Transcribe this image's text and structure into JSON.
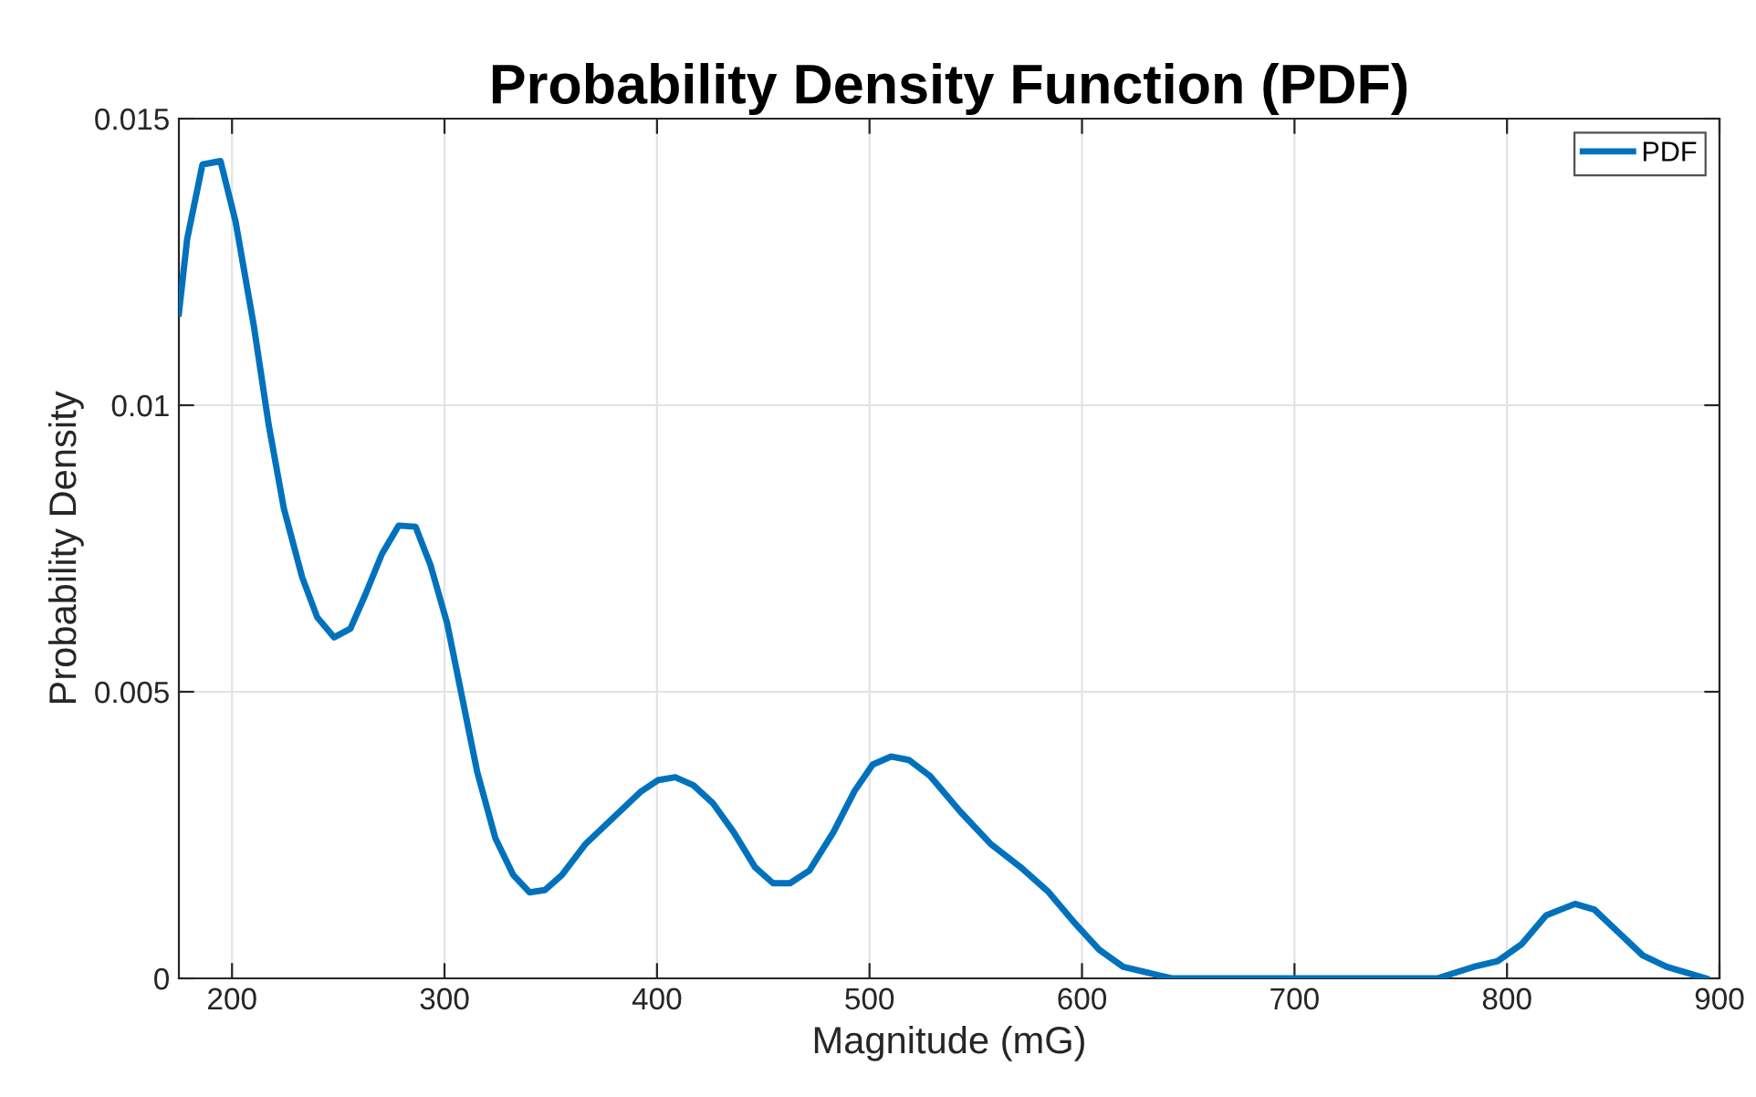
{
  "chart_data": {
    "type": "line",
    "title": "Probability Density Function (PDF)",
    "xlabel": "Magnitude (mG)",
    "ylabel": "Probability Density",
    "series": [
      {
        "name": "PDF",
        "color": "#0072bd",
        "x": [
          175,
          178.9,
          186.1,
          194.6,
          201.7,
          210.2,
          217.3,
          224.4,
          233,
          240.1,
          248,
          255.7,
          262.8,
          270.5,
          278.4,
          286.4,
          293.5,
          301.2,
          308.3,
          315.4,
          323.9,
          332.4,
          340.1,
          347.2,
          355.2,
          366.5,
          379.3,
          392.1,
          400.6,
          408.6,
          417.1,
          426.2,
          436.1,
          446.1,
          454.6,
          462.6,
          471.7,
          483,
          493,
          501.5,
          510.1,
          518.6,
          528.5,
          542.7,
          556.9,
          571.1,
          583.9,
          596.7,
          608.1,
          619.4,
          630.8,
          642.2,
          664.9,
          700,
          740,
          767.2,
          784.2,
          795.6,
          807,
          818.4,
          832,
          841.1,
          852.5,
          863.9,
          875.2,
          893.7
        ],
        "values": [
          0.0116,
          0.0129,
          0.0142,
          0.01426,
          0.0132,
          0.0114,
          0.00965,
          0.0082,
          0.007,
          0.0063,
          0.00595,
          0.0061,
          0.0067,
          0.0074,
          0.0079,
          0.00788,
          0.0072,
          0.0062,
          0.0049,
          0.0036,
          0.00245,
          0.0018,
          0.0015,
          0.00154,
          0.0018,
          0.00235,
          0.0028,
          0.00325,
          0.00346,
          0.00351,
          0.00337,
          0.00306,
          0.00255,
          0.00194,
          0.00166,
          0.00166,
          0.00188,
          0.00255,
          0.00327,
          0.00373,
          0.00387,
          0.00381,
          0.00353,
          0.00291,
          0.00235,
          0.00194,
          0.00152,
          0.00096,
          0.0005,
          0.0002,
          0.0001,
          0,
          0,
          0,
          0,
          0,
          0.0002,
          0.0003,
          0.0006,
          0.0011,
          0.0013,
          0.0012,
          0.0008,
          0.0004,
          0.0002,
          0
        ]
      }
    ],
    "xlim": [
      175,
      900
    ],
    "ylim": [
      0,
      0.015
    ],
    "xticks": [
      200,
      300,
      400,
      500,
      600,
      700,
      800,
      900
    ],
    "yticks": [
      0,
      0.005,
      0.01,
      0.015
    ],
    "grid": true,
    "legend": "top right",
    "line_style": "solid",
    "marker": "none"
  }
}
